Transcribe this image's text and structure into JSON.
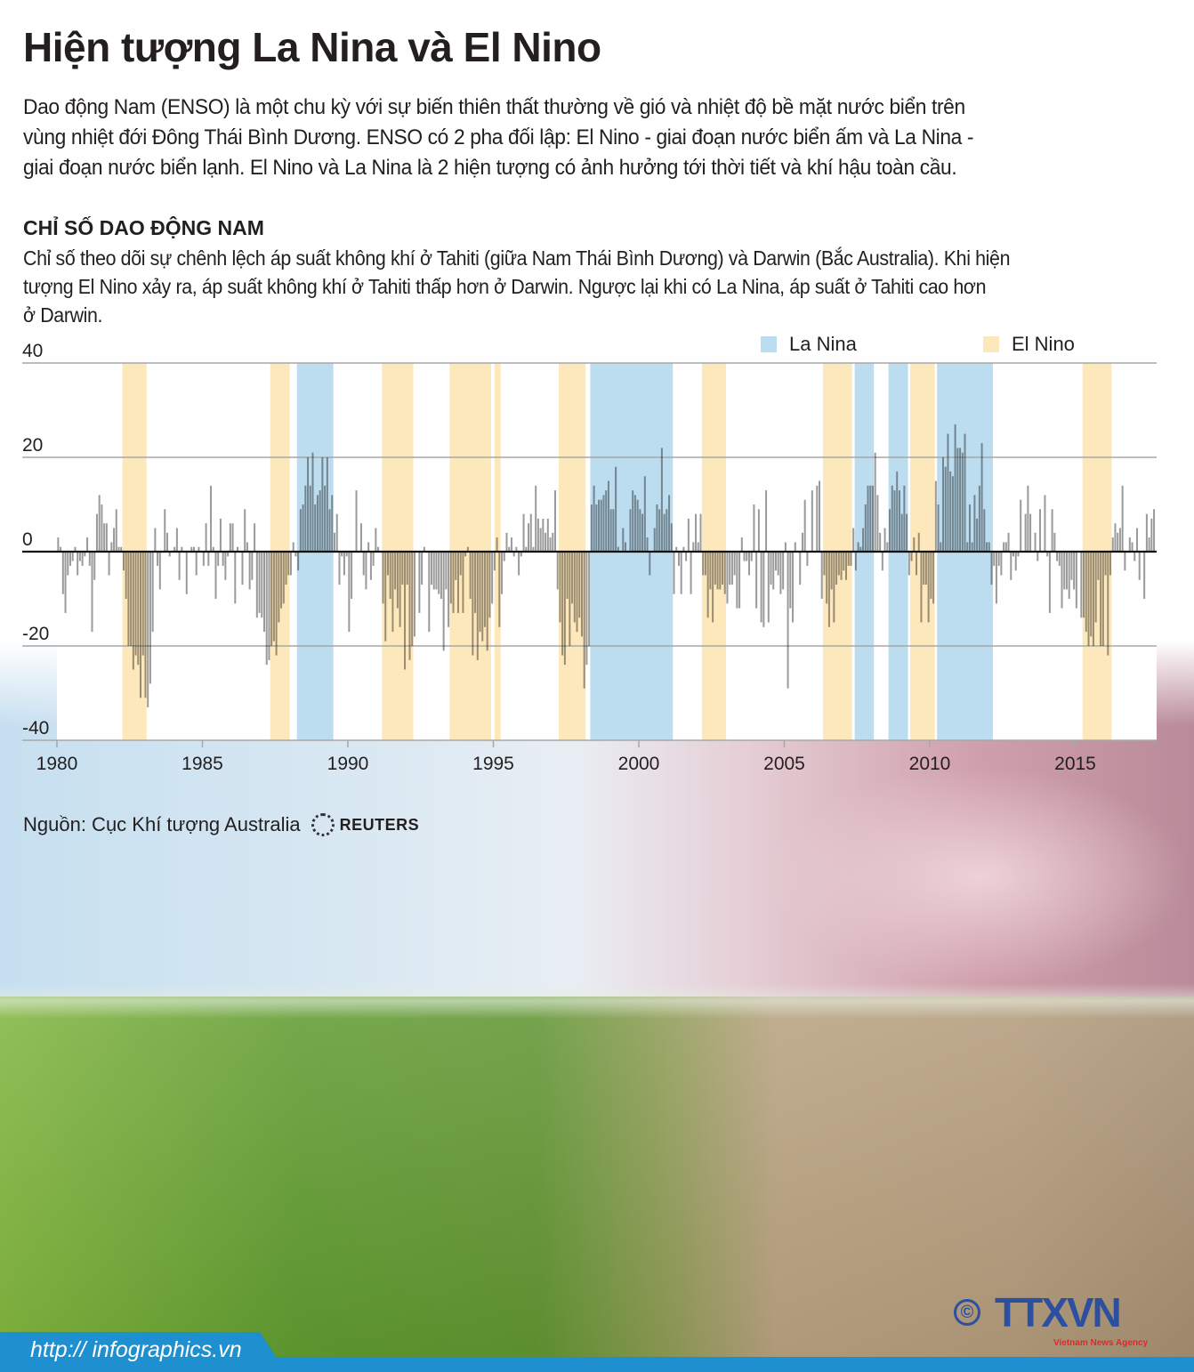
{
  "title": "Hiện tượng La Nina và El Nino",
  "intro_lines": [
    "Dao động Nam (ENSO) là một chu kỳ với sự biến thiên thất thường về gió và nhiệt độ bề mặt nước biển trên",
    "vùng nhiệt đới Đông Thái Bình Dương. ENSO có 2 pha đối lập: El Nino - giai đoạn nước biển ấm và La Nina -",
    "giai đoạn nước biển lạnh. El Nino và La Nina là 2 hiện tượng có ảnh hưởng tới thời tiết và khí hậu toàn cầu."
  ],
  "section_title": "CHỈ SỐ DAO ĐỘNG NAM",
  "section_desc_lines": [
    "Chỉ số theo dõi sự chênh lệch áp suất không khí ở Tahiti (giữa Nam Thái Bình Dương) và Darwin (Bắc Australia). Khi hiện",
    "tượng El Nino xảy ra, áp suất không khí ở Tahiti thấp hơn ở Darwin. Ngược lại khi có La Nina, áp suất ở Tahiti cao hơn",
    "ở Darwin."
  ],
  "source": "Nguồn: Cục Khí tượng Australia",
  "source_logo": "REUTERS",
  "footer_url": "http:// infographics.vn",
  "agency_logo": {
    "text": "TTXVN",
    "tagline": "Vietnam News Agency",
    "copyright": "©"
  },
  "colors": {
    "la_nina": "#bcdcef",
    "el_nino": "#fde8bb",
    "bar": "#9a9a9a",
    "footer": "#1e8fcf"
  },
  "chart_data": {
    "type": "bar",
    "frequency": "monthly",
    "ylim": [
      -40,
      40
    ],
    "yticks": [
      "40",
      "20",
      "0",
      "-20",
      "-40"
    ],
    "xticks": [
      "1980",
      "1985",
      "1990",
      "1995",
      "2000",
      "2005",
      "2010",
      "2015"
    ],
    "grid": true,
    "legend": {
      "placement": "top-right",
      "entries": [
        "La Nina",
        "El Nino"
      ]
    },
    "periods": [
      {
        "type": "El Nino",
        "start": 1982.25,
        "end": 1983.08
      },
      {
        "type": "El Nino",
        "start": 1987.33,
        "end": 1988.0
      },
      {
        "type": "La Nina",
        "start": 1988.25,
        "end": 1989.5
      },
      {
        "type": "El Nino",
        "start": 1991.17,
        "end": 1992.25
      },
      {
        "type": "El Nino",
        "start": 1993.5,
        "end": 1994.92
      },
      {
        "type": "El Nino",
        "start": 1995.04,
        "end": 1995.25
      },
      {
        "type": "El Nino",
        "start": 1997.25,
        "end": 1998.17
      },
      {
        "type": "La Nina",
        "start": 1998.33,
        "end": 2001.17
      },
      {
        "type": "El Nino",
        "start": 2002.17,
        "end": 2003.0
      },
      {
        "type": "El Nino",
        "start": 2006.33,
        "end": 2007.33
      },
      {
        "type": "La Nina",
        "start": 2007.42,
        "end": 2008.08
      },
      {
        "type": "La Nina",
        "start": 2008.58,
        "end": 2009.25
      },
      {
        "type": "El Nino",
        "start": 2009.33,
        "end": 2010.17
      },
      {
        "type": "La Nina",
        "start": 2010.25,
        "end": 2012.17
      },
      {
        "type": "El Nino",
        "start": 2015.25,
        "end": 2016.25
      }
    ],
    "monthly_values": [
      {
        "year": 1980,
        "values": [
          3,
          1,
          -9,
          -13,
          -5,
          -3,
          -2,
          1,
          -5,
          -2,
          -3,
          -1
        ]
      },
      {
        "year": 1981,
        "values": [
          3,
          -3,
          -17,
          -6,
          8,
          12,
          10,
          6,
          6,
          -5,
          2,
          5
        ]
      },
      {
        "year": 1982,
        "values": [
          9,
          1,
          1,
          -4,
          -10,
          -20,
          -20,
          -25,
          -22,
          -24,
          -31,
          -22
        ]
      },
      {
        "year": 1983,
        "values": [
          -31,
          -33,
          -28,
          -17,
          5,
          -3,
          -8,
          0,
          9,
          4,
          -1,
          0
        ]
      },
      {
        "year": 1984,
        "values": [
          1,
          5,
          -6,
          1,
          0,
          -9,
          0,
          1,
          1,
          -5,
          1,
          0
        ]
      },
      {
        "year": 1985,
        "values": [
          -3,
          6,
          -3,
          14,
          1,
          -10,
          -3,
          7,
          -3,
          -6,
          -1,
          6
        ]
      },
      {
        "year": 1986,
        "values": [
          6,
          -11,
          1,
          0,
          -7,
          9,
          2,
          -8,
          -6,
          6,
          -14,
          -13
        ]
      },
      {
        "year": 1987,
        "values": [
          -14,
          -17,
          -24,
          -23,
          -20,
          -19,
          -22,
          -15,
          -12,
          -11,
          -7,
          -5
        ]
      },
      {
        "year": 1988,
        "values": [
          -5,
          2,
          -1,
          -4,
          9,
          10,
          14,
          20,
          14,
          21,
          10,
          12
        ]
      },
      {
        "year": 1989,
        "values": [
          13,
          20,
          14,
          20,
          9,
          12,
          4,
          8,
          -7,
          -1,
          -5,
          -1
        ]
      },
      {
        "year": 1990,
        "values": [
          -17,
          -10,
          0,
          13,
          0,
          6,
          -5,
          -8,
          2,
          -6,
          -3,
          5
        ]
      },
      {
        "year": 1991,
        "values": [
          1,
          0,
          -11,
          -19,
          -5,
          -10,
          -17,
          -8,
          -12,
          -16,
          -7,
          -25
        ]
      },
      {
        "year": 1992,
        "values": [
          -7,
          -23,
          -20,
          -18,
          0,
          -13,
          -7,
          1,
          0,
          -17,
          -7,
          -8
        ]
      },
      {
        "year": 1993,
        "values": [
          -8,
          -9,
          -10,
          -21,
          -8,
          -16,
          -11,
          -13,
          -6,
          -13,
          -5,
          -13
        ]
      },
      {
        "year": 1994,
        "values": [
          -1,
          1,
          -10,
          -22,
          -13,
          -23,
          -17,
          -19,
          -16,
          -21,
          -14,
          -11
        ]
      },
      {
        "year": 1995,
        "values": [
          -4,
          3,
          -16,
          -9,
          -2,
          4,
          1,
          3,
          -1,
          1,
          -5,
          -1
        ]
      },
      {
        "year": 1996,
        "values": [
          8,
          1,
          6,
          8,
          1,
          14,
          7,
          5,
          7,
          4,
          7,
          3
        ]
      },
      {
        "year": 1997,
        "values": [
          4,
          13,
          -8,
          -15,
          -22,
          -24,
          -10,
          -20,
          -11,
          -15,
          -17,
          -14
        ]
      },
      {
        "year": 1998,
        "values": [
          -18,
          -29,
          -24,
          -20,
          10,
          14,
          10,
          11,
          11,
          12,
          13,
          15
        ]
      },
      {
        "year": 1999,
        "values": [
          9,
          9,
          18,
          1,
          0,
          5,
          2,
          0,
          9,
          13,
          12,
          11
        ]
      },
      {
        "year": 2000,
        "values": [
          9,
          8,
          16,
          3,
          -5,
          0,
          5,
          10,
          9,
          22,
          8,
          9
        ]
      },
      {
        "year": 2001,
        "values": [
          12,
          6,
          -9,
          1,
          -3,
          -9,
          1,
          -2,
          7,
          -9,
          2,
          8
        ]
      },
      {
        "year": 2002,
        "values": [
          2,
          8,
          -5,
          -5,
          -14,
          -8,
          -15,
          -7,
          -8,
          -8,
          -7,
          -9
        ]
      },
      {
        "year": 2003,
        "values": [
          -11,
          -7,
          -7,
          -5,
          -12,
          -12,
          3,
          -2,
          -2,
          -5,
          -2,
          10
        ]
      },
      {
        "year": 2004,
        "values": [
          -12,
          9,
          -15,
          -16,
          13,
          -15,
          -7,
          -8,
          -4,
          -5,
          -9,
          -8
        ]
      },
      {
        "year": 2005,
        "values": [
          2,
          -29,
          -12,
          -15,
          2,
          0,
          -7,
          4,
          11,
          -3,
          0,
          13
        ]
      },
      {
        "year": 2006,
        "values": [
          0,
          14,
          15,
          -10,
          -5,
          -11,
          -16,
          -8,
          -15,
          -7,
          -5,
          -6
        ]
      },
      {
        "year": 2007,
        "values": [
          -4,
          -6,
          -3,
          -3,
          5,
          -4,
          2,
          1,
          5,
          10,
          14,
          14
        ]
      },
      {
        "year": 2008,
        "values": [
          14,
          21,
          12,
          4,
          -4,
          5,
          2,
          9,
          14,
          13,
          17,
          13
        ]
      },
      {
        "year": 2009,
        "values": [
          8,
          14,
          8,
          -5,
          -2,
          3,
          -5,
          4,
          -15,
          -7,
          -7,
          -15
        ]
      },
      {
        "year": 2010,
        "values": [
          -10,
          -11,
          15,
          10,
          2,
          20,
          18,
          25,
          17,
          16,
          27,
          22
        ]
      },
      {
        "year": 2011,
        "values": [
          22,
          21,
          25,
          2,
          10,
          2,
          12,
          7,
          14,
          23,
          9,
          2
        ]
      },
      {
        "year": 2012,
        "values": [
          2,
          -7,
          -3,
          -11,
          -3,
          -5,
          2,
          2,
          4,
          -6,
          -1,
          -4
        ]
      },
      {
        "year": 2013,
        "values": [
          -1,
          11,
          0,
          8,
          14,
          8,
          0,
          4,
          -2,
          9,
          0,
          12
        ]
      },
      {
        "year": 2014,
        "values": [
          -1,
          -13,
          9,
          4,
          -2,
          -3,
          -12,
          -8,
          -8,
          -10,
          -6,
          -8
        ]
      },
      {
        "year": 2015,
        "values": [
          -12,
          0,
          -14,
          -14,
          -17,
          -20,
          -18,
          -20,
          -15,
          -6,
          -20,
          -20
        ]
      },
      {
        "year": 2016,
        "values": [
          -5,
          -22,
          -5,
          3,
          6,
          4,
          5,
          14,
          -4,
          0,
          3,
          2
        ]
      },
      {
        "year": 2017,
        "values": [
          -2,
          5,
          -6,
          0,
          -10,
          8,
          3,
          7,
          9
        ]
      }
    ]
  }
}
